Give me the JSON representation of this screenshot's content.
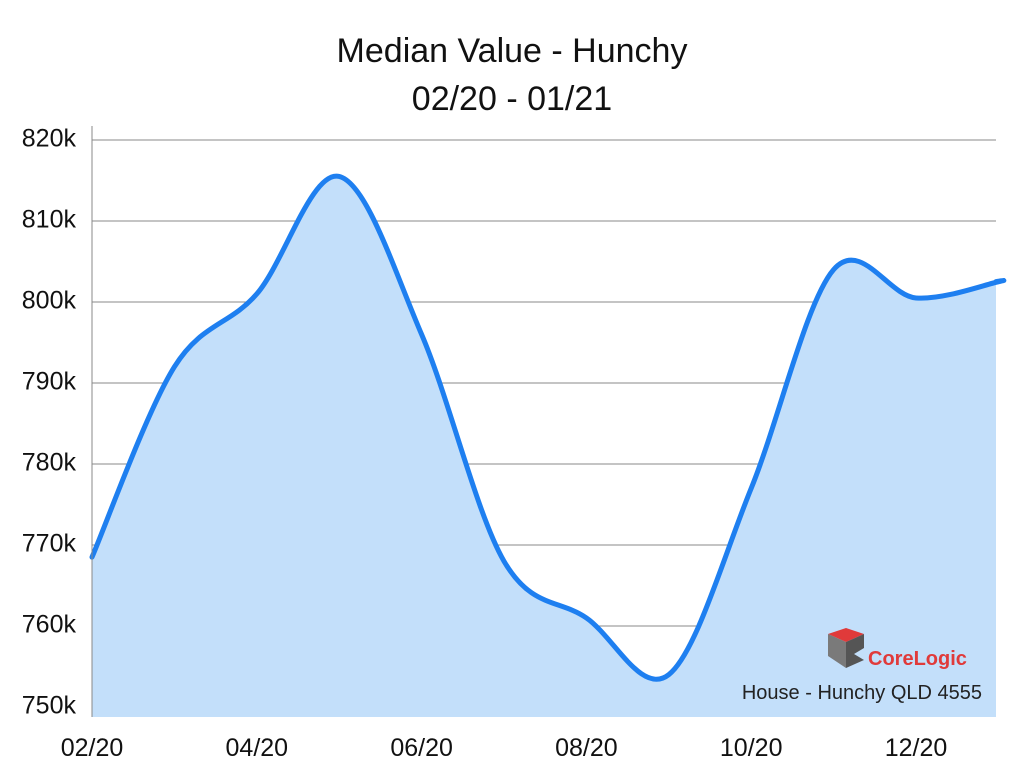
{
  "chart_data": {
    "type": "area",
    "title": "Median Value - Hunchy",
    "subtitle": "02/20 - 01/21",
    "x_tick_labels": [
      "02/20",
      "04/20",
      "06/20",
      "08/20",
      "10/20",
      "12/20"
    ],
    "y_tick_labels": [
      "820k",
      "810k",
      "800k",
      "790k",
      "780k",
      "770k",
      "760k",
      "750k"
    ],
    "ylim": [
      750,
      820
    ],
    "y_unit": "k",
    "grid": true,
    "x": [
      "02/20",
      "03/20",
      "04/20",
      "05/20",
      "06/20",
      "07/20",
      "08/20",
      "09/20",
      "10/20",
      "11/20",
      "12/20",
      "01/21"
    ],
    "series": [
      {
        "values": [
          768.5,
          792,
          801,
          815.5,
          796,
          768,
          761,
          754,
          777,
          804,
          800.5,
          802.5
        ]
      }
    ],
    "colors": {
      "line": "#1e7ff0",
      "fill": "#c3dffa"
    },
    "watermark": {
      "brand": "CoreLogic",
      "caption": "House - Hunchy QLD 4555"
    }
  }
}
